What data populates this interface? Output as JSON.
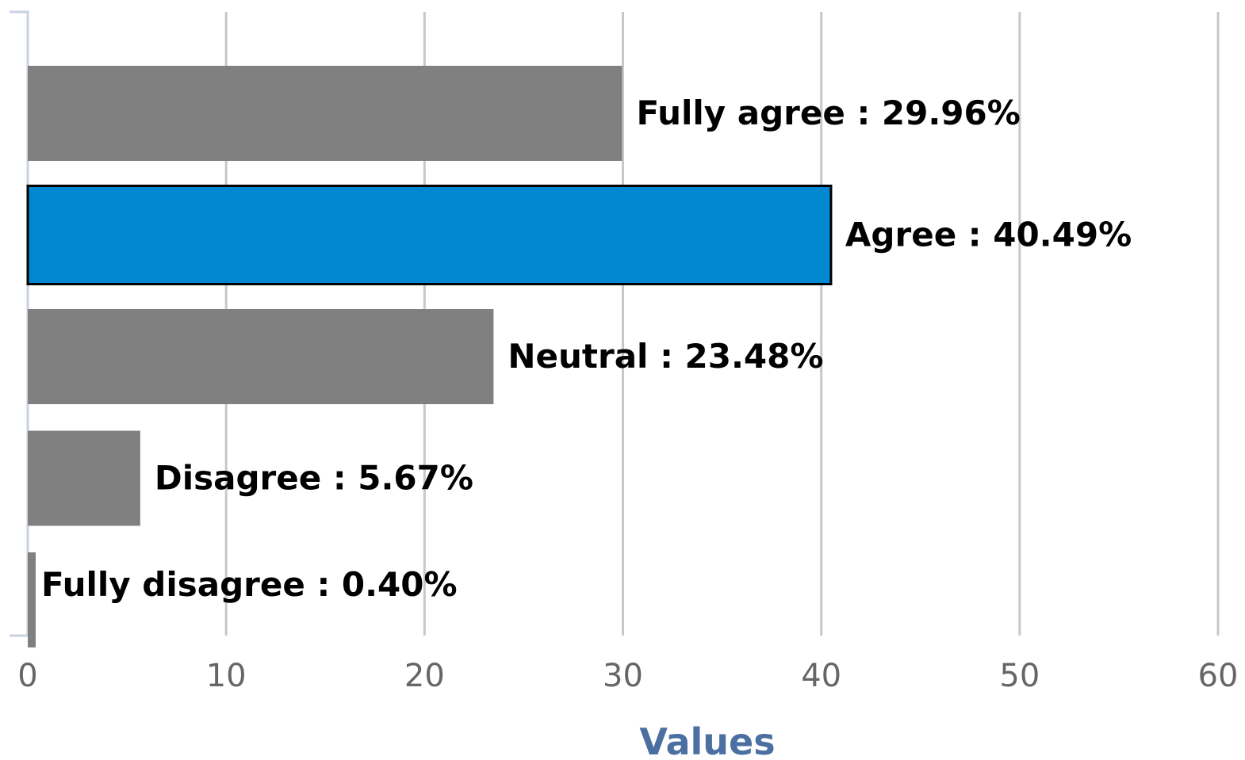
{
  "chart_data": {
    "type": "bar",
    "orientation": "horizontal",
    "categories": [
      "Fully agree",
      "Agree",
      "Neutral",
      "Disagree",
      "Fully disagree"
    ],
    "values": [
      29.96,
      40.49,
      23.48,
      5.67,
      0.4
    ],
    "data_labels": [
      "Fully agree : 29.96%",
      "Agree : 40.49%",
      "Neutral : 23.48%",
      "Disagree : 5.67%",
      "Fully disagree : 0.40%"
    ],
    "highlighted_category": "Agree",
    "xlabel": "Values",
    "xlim": [
      0,
      60
    ],
    "xticks": [
      0,
      10,
      20,
      30,
      40,
      50,
      60
    ],
    "grid": "vertical",
    "legend": "none"
  },
  "colors": {
    "bar": "#808080",
    "bar_highlight": "#0288d1",
    "highlight_stroke": "#000000",
    "grid": "#c8c8c8",
    "axis_line": "#c8d2e0",
    "tick_label": "#666666",
    "data_label": "#000000",
    "axis_title": "#4a6fa0"
  }
}
